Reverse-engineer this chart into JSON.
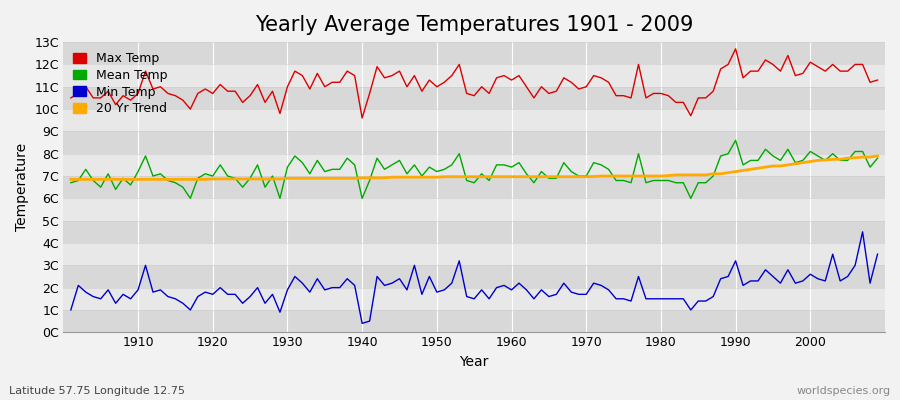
{
  "title": "Yearly Average Temperatures 1901 - 2009",
  "xlabel": "Year",
  "ylabel": "Temperature",
  "subtitle": "Latitude 57.75 Longitude 12.75",
  "watermark": "worldspecies.org",
  "years": [
    1901,
    1902,
    1903,
    1904,
    1905,
    1906,
    1907,
    1908,
    1909,
    1910,
    1911,
    1912,
    1913,
    1914,
    1915,
    1916,
    1917,
    1918,
    1919,
    1920,
    1921,
    1922,
    1923,
    1924,
    1925,
    1926,
    1927,
    1928,
    1929,
    1930,
    1931,
    1932,
    1933,
    1934,
    1935,
    1936,
    1937,
    1938,
    1939,
    1940,
    1941,
    1942,
    1943,
    1944,
    1945,
    1946,
    1947,
    1948,
    1949,
    1950,
    1951,
    1952,
    1953,
    1954,
    1955,
    1956,
    1957,
    1958,
    1959,
    1960,
    1961,
    1962,
    1963,
    1964,
    1965,
    1966,
    1967,
    1968,
    1969,
    1970,
    1971,
    1972,
    1973,
    1974,
    1975,
    1976,
    1977,
    1978,
    1979,
    1980,
    1981,
    1982,
    1983,
    1984,
    1985,
    1986,
    1987,
    1988,
    1989,
    1990,
    1991,
    1992,
    1993,
    1994,
    1995,
    1996,
    1997,
    1998,
    1999,
    2000,
    2001,
    2002,
    2003,
    2004,
    2005,
    2006,
    2007,
    2008,
    2009
  ],
  "max_temp": [
    10.5,
    10.7,
    11.0,
    10.5,
    10.5,
    10.8,
    10.2,
    10.6,
    10.4,
    10.7,
    11.7,
    10.9,
    11.0,
    10.7,
    10.6,
    10.4,
    10.0,
    10.7,
    10.9,
    10.7,
    11.1,
    10.8,
    10.8,
    10.3,
    10.6,
    11.1,
    10.3,
    10.8,
    9.8,
    11.0,
    11.7,
    11.5,
    10.9,
    11.6,
    11.0,
    11.2,
    11.2,
    11.7,
    11.5,
    9.6,
    10.7,
    11.9,
    11.4,
    11.5,
    11.7,
    11.0,
    11.5,
    10.8,
    11.3,
    11.0,
    11.2,
    11.5,
    12.0,
    10.7,
    10.6,
    11.0,
    10.7,
    11.4,
    11.5,
    11.3,
    11.5,
    11.0,
    10.5,
    11.0,
    10.7,
    10.8,
    11.4,
    11.2,
    10.9,
    11.0,
    11.5,
    11.4,
    11.2,
    10.6,
    10.6,
    10.5,
    12.0,
    10.5,
    10.7,
    10.7,
    10.6,
    10.3,
    10.3,
    9.7,
    10.5,
    10.5,
    10.8,
    11.8,
    12.0,
    12.7,
    11.4,
    11.7,
    11.7,
    12.2,
    12.0,
    11.7,
    12.4,
    11.5,
    11.6,
    12.1,
    11.9,
    11.7,
    12.0,
    11.7,
    11.7,
    12.0,
    12.0,
    11.2,
    11.3
  ],
  "mean_temp": [
    6.7,
    6.8,
    7.3,
    6.8,
    6.5,
    7.1,
    6.4,
    6.9,
    6.6,
    7.2,
    7.9,
    7.0,
    7.1,
    6.8,
    6.7,
    6.5,
    6.0,
    6.9,
    7.1,
    7.0,
    7.5,
    7.0,
    6.9,
    6.5,
    6.9,
    7.5,
    6.5,
    7.0,
    6.0,
    7.4,
    7.9,
    7.6,
    7.1,
    7.7,
    7.2,
    7.3,
    7.3,
    7.8,
    7.5,
    6.0,
    6.8,
    7.8,
    7.3,
    7.5,
    7.7,
    7.1,
    7.5,
    7.0,
    7.4,
    7.2,
    7.3,
    7.5,
    8.0,
    6.8,
    6.7,
    7.1,
    6.8,
    7.5,
    7.5,
    7.4,
    7.6,
    7.1,
    6.7,
    7.2,
    6.9,
    6.9,
    7.6,
    7.2,
    7.0,
    7.0,
    7.6,
    7.5,
    7.3,
    6.8,
    6.8,
    6.7,
    8.0,
    6.7,
    6.8,
    6.8,
    6.8,
    6.7,
    6.7,
    6.0,
    6.7,
    6.7,
    7.0,
    7.9,
    8.0,
    8.6,
    7.5,
    7.7,
    7.7,
    8.2,
    7.9,
    7.7,
    8.2,
    7.6,
    7.7,
    8.1,
    7.9,
    7.7,
    8.0,
    7.7,
    7.7,
    8.1,
    8.1,
    7.4,
    7.8
  ],
  "min_temp": [
    1.0,
    2.1,
    1.8,
    1.6,
    1.5,
    1.9,
    1.3,
    1.7,
    1.5,
    1.9,
    3.0,
    1.8,
    1.9,
    1.6,
    1.5,
    1.3,
    1.0,
    1.6,
    1.8,
    1.7,
    2.0,
    1.7,
    1.7,
    1.3,
    1.6,
    2.0,
    1.3,
    1.7,
    0.9,
    1.9,
    2.5,
    2.2,
    1.8,
    2.4,
    1.9,
    2.0,
    2.0,
    2.4,
    2.1,
    0.4,
    0.5,
    2.5,
    2.1,
    2.2,
    2.4,
    1.9,
    3.0,
    1.7,
    2.5,
    1.8,
    1.9,
    2.2,
    3.2,
    1.6,
    1.5,
    1.9,
    1.5,
    2.0,
    2.1,
    1.9,
    2.2,
    1.9,
    1.5,
    1.9,
    1.6,
    1.7,
    2.2,
    1.8,
    1.7,
    1.7,
    2.2,
    2.1,
    1.9,
    1.5,
    1.5,
    1.4,
    2.5,
    1.5,
    1.5,
    1.5,
    1.5,
    1.5,
    1.5,
    1.0,
    1.4,
    1.4,
    1.6,
    2.4,
    2.5,
    3.2,
    2.1,
    2.3,
    2.3,
    2.8,
    2.5,
    2.2,
    2.8,
    2.2,
    2.3,
    2.6,
    2.4,
    2.3,
    3.5,
    2.3,
    2.5,
    3.0,
    4.5,
    2.2,
    3.5
  ],
  "trend_values": [
    6.85,
    6.85,
    6.85,
    6.85,
    6.85,
    6.85,
    6.85,
    6.85,
    6.85,
    6.85,
    6.85,
    6.85,
    6.85,
    6.85,
    6.85,
    6.85,
    6.85,
    6.85,
    6.85,
    6.87,
    6.87,
    6.87,
    6.87,
    6.87,
    6.87,
    6.87,
    6.87,
    6.87,
    6.87,
    6.9,
    6.9,
    6.9,
    6.9,
    6.9,
    6.9,
    6.9,
    6.9,
    6.9,
    6.9,
    6.92,
    6.92,
    6.92,
    6.92,
    6.95,
    6.95,
    6.95,
    6.95,
    6.95,
    6.95,
    6.95,
    6.97,
    6.97,
    6.97,
    6.97,
    6.97,
    6.97,
    6.97,
    6.97,
    6.97,
    6.97,
    6.97,
    6.97,
    6.97,
    6.97,
    6.97,
    6.97,
    6.97,
    6.97,
    6.97,
    6.97,
    6.98,
    7.0,
    7.0,
    7.0,
    7.0,
    7.0,
    7.0,
    7.0,
    7.0,
    7.0,
    7.02,
    7.05,
    7.05,
    7.05,
    7.05,
    7.05,
    7.1,
    7.1,
    7.15,
    7.2,
    7.25,
    7.3,
    7.35,
    7.4,
    7.45,
    7.45,
    7.5,
    7.55,
    7.6,
    7.65,
    7.7,
    7.72,
    7.75,
    7.75,
    7.8,
    7.82,
    7.85,
    7.85,
    7.9
  ],
  "max_color": "#dd0000",
  "mean_color": "#00aa00",
  "min_color": "#0000cc",
  "trend_color": "#ffaa00",
  "bg_color": "#f2f2f2",
  "plot_bg_color": "#e8e8e8",
  "band_light": "#e8e8e8",
  "band_dark": "#d8d8d8",
  "grid_color": "#ffffff",
  "hline_color": "#cccccc",
  "ylim": [
    0,
    13
  ],
  "yticks": [
    0,
    1,
    2,
    3,
    4,
    5,
    6,
    7,
    8,
    9,
    10,
    11,
    12,
    13
  ],
  "ytick_labels": [
    "0C",
    "1C",
    "2C",
    "3C",
    "4C",
    "5C",
    "6C",
    "7C",
    "8C",
    "9C",
    "10C",
    "11C",
    "12C",
    "13C"
  ],
  "xlim": [
    1900,
    2010
  ],
  "xticks": [
    1910,
    1920,
    1930,
    1940,
    1950,
    1960,
    1970,
    1980,
    1990,
    2000
  ],
  "title_fontsize": 15,
  "axis_label_fontsize": 10,
  "tick_fontsize": 9,
  "legend_fontsize": 9,
  "linewidth": 1.0,
  "trend_linewidth": 2.0
}
